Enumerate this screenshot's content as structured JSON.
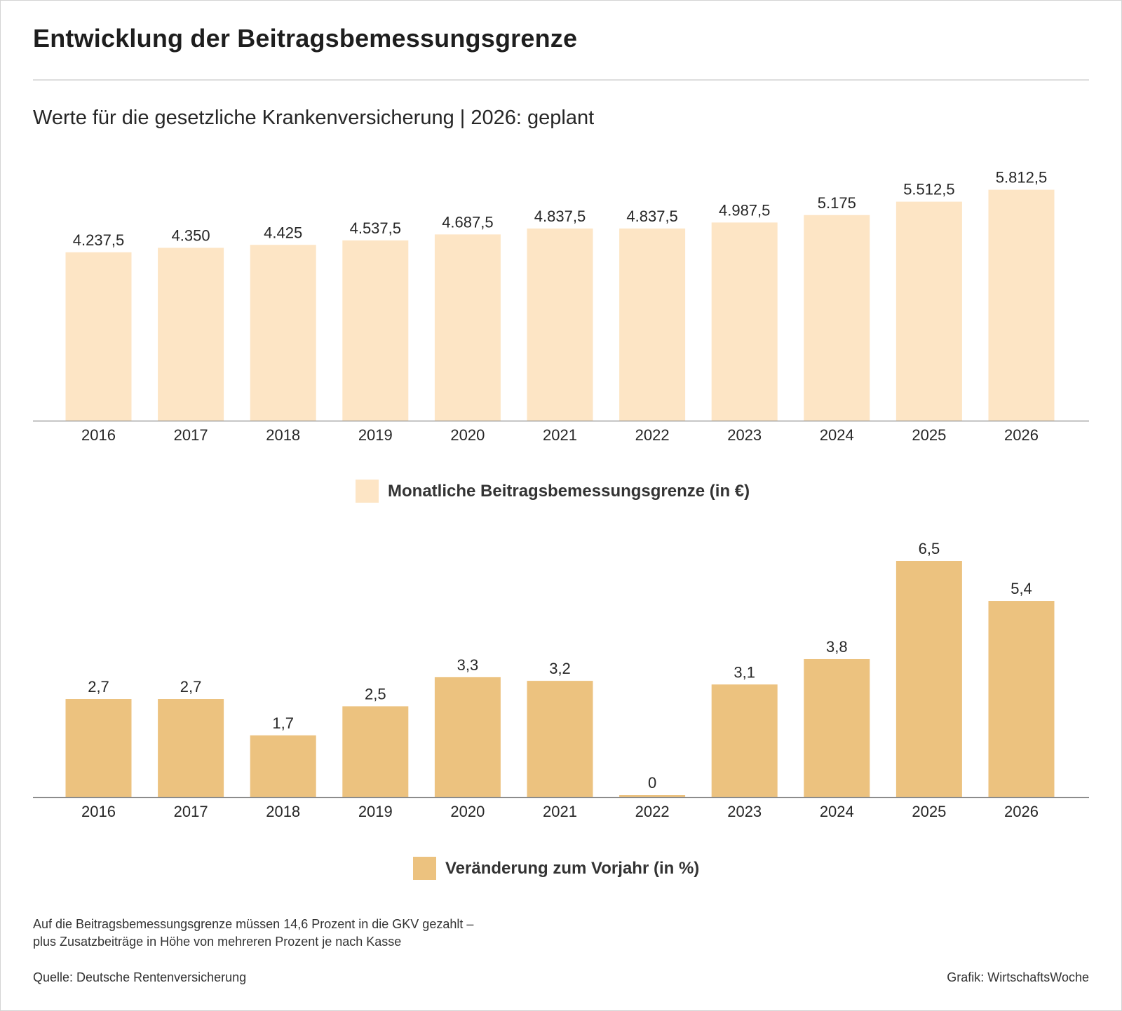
{
  "title": "Entwicklung der Beitragsbemessungsgrenze",
  "subtitle": "Werte für die gesetzliche Krankenversicherung | 2026: geplant",
  "chart_data": [
    {
      "type": "bar",
      "categories": [
        "2016",
        "2017",
        "2018",
        "2019",
        "2020",
        "2021",
        "2022",
        "2023",
        "2024",
        "2025",
        "2026"
      ],
      "series": [
        {
          "name": "Monatliche Beitragsbemessungsgrenze (in €)",
          "values": [
            4237.5,
            4350,
            4425,
            4537.5,
            4687.5,
            4837.5,
            4837.5,
            4987.5,
            5175,
            5512.5,
            5812.5
          ],
          "labels": [
            "4.237,5",
            "4.350",
            "4.425",
            "4.537,5",
            "4.687,5",
            "4.837,5",
            "4.837,5",
            "4.987,5",
            "5.175",
            "5.512,5",
            "5.812,5"
          ],
          "color": "#fde5c5"
        }
      ],
      "ylim": [
        0,
        6000
      ],
      "grid": false,
      "legend_position": "bottom"
    },
    {
      "type": "bar",
      "categories": [
        "2016",
        "2017",
        "2018",
        "2019",
        "2020",
        "2021",
        "2022",
        "2023",
        "2024",
        "2025",
        "2026"
      ],
      "series": [
        {
          "name": "Veränderung zum Vorjahr (in %)",
          "values": [
            2.7,
            2.7,
            1.7,
            2.5,
            3.3,
            3.2,
            0,
            3.1,
            3.8,
            6.5,
            5.4
          ],
          "labels": [
            "2,7",
            "2,7",
            "1,7",
            "2,5",
            "3,3",
            "3,2",
            "0",
            "3,1",
            "3,8",
            "6,5",
            "5,4"
          ],
          "color": "#ecc27f"
        }
      ],
      "ylim": [
        0,
        6.5
      ],
      "grid": false,
      "legend_position": "bottom"
    }
  ],
  "footnote": {
    "line1": "Auf die Beitragsbemessungsgrenze müssen 14,6 Prozent in die GKV gezahlt –",
    "line2": "plus Zusatzbeiträge in Höhe von mehreren Prozent je nach Kasse"
  },
  "source": "Quelle: Deutsche Rentenversicherung",
  "credit": "Grafik: WirtschaftsWoche"
}
